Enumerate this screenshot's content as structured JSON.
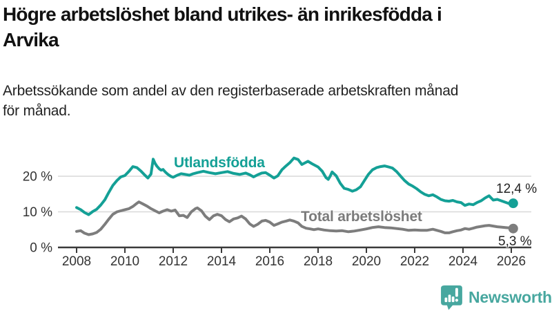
{
  "page": {
    "background": "#ffffff"
  },
  "header": {
    "title_line1": "Högre arbetslöshet bland utrikes- än inrikesfödda i",
    "title_line2": "Arvika",
    "subtitle_line1": "Arbetssökande som andel av den registerbaserade arbetskraften månad",
    "subtitle_line2": "för månad."
  },
  "chart_data": {
    "type": "line",
    "title": "Högre arbetslöshet bland utrikes- än inrikesfödda i Arvika",
    "subtitle": "Arbetssökande som andel av den registerbaserade arbetskraften månad för månad.",
    "xlabel": "",
    "ylabel": "",
    "unit": "%",
    "xlim": [
      2007.85,
      2026.35
    ],
    "ylim": [
      0,
      26
    ],
    "grid": "horizontal-light",
    "legend_position": "inline-labels",
    "x_ticks": [
      {
        "value": 2008,
        "label": "2008"
      },
      {
        "value": 2010,
        "label": "2010"
      },
      {
        "value": 2012,
        "label": "2012"
      },
      {
        "value": 2014,
        "label": "2014"
      },
      {
        "value": 2016,
        "label": "2016"
      },
      {
        "value": 2018,
        "label": "2018"
      },
      {
        "value": 2020,
        "label": "2020"
      },
      {
        "value": 2022,
        "label": "2022"
      },
      {
        "value": 2024,
        "label": "2024"
      },
      {
        "value": 2026,
        "label": "2026"
      }
    ],
    "y_ticks": [
      {
        "value": 0,
        "label": "0 %"
      },
      {
        "value": 10,
        "label": "10 %"
      },
      {
        "value": 20,
        "label": "20 %"
      }
    ],
    "colors": {
      "grid": "#d8d8d8",
      "axis": "#3a3a3a",
      "tick_label": "#333333"
    },
    "series": [
      {
        "name": "Utlandsfödda",
        "color": "#14a096",
        "line_width": 4,
        "end_value": 12.4,
        "end_value_label": "12,4 %",
        "points": [
          [
            2008.0,
            11.2
          ],
          [
            2008.17,
            10.6
          ],
          [
            2008.33,
            9.8
          ],
          [
            2008.5,
            9.2
          ],
          [
            2008.67,
            10.1
          ],
          [
            2008.83,
            10.7
          ],
          [
            2009.0,
            11.9
          ],
          [
            2009.17,
            13.4
          ],
          [
            2009.33,
            15.4
          ],
          [
            2009.5,
            17.4
          ],
          [
            2009.67,
            18.8
          ],
          [
            2009.83,
            19.8
          ],
          [
            2010.0,
            20.2
          ],
          [
            2010.17,
            21.4
          ],
          [
            2010.33,
            22.7
          ],
          [
            2010.5,
            22.4
          ],
          [
            2010.67,
            21.4
          ],
          [
            2010.83,
            20.3
          ],
          [
            2010.95,
            19.5
          ],
          [
            2011.08,
            20.6
          ],
          [
            2011.17,
            24.8
          ],
          [
            2011.25,
            23.6
          ],
          [
            2011.33,
            22.8
          ],
          [
            2011.42,
            22.1
          ],
          [
            2011.5,
            21.7
          ],
          [
            2011.58,
            21.9
          ],
          [
            2011.67,
            21.2
          ],
          [
            2011.75,
            20.7
          ],
          [
            2011.83,
            20.3
          ],
          [
            2011.92,
            19.9
          ],
          [
            2012.0,
            19.7
          ],
          [
            2012.17,
            20.3
          ],
          [
            2012.33,
            20.7
          ],
          [
            2012.5,
            20.5
          ],
          [
            2012.67,
            20.3
          ],
          [
            2012.83,
            20.7
          ],
          [
            2013.0,
            21.0
          ],
          [
            2013.25,
            21.4
          ],
          [
            2013.5,
            21.0
          ],
          [
            2013.75,
            20.7
          ],
          [
            2014.0,
            21.0
          ],
          [
            2014.25,
            21.3
          ],
          [
            2014.5,
            20.8
          ],
          [
            2014.75,
            20.5
          ],
          [
            2015.0,
            20.9
          ],
          [
            2015.17,
            20.4
          ],
          [
            2015.33,
            19.8
          ],
          [
            2015.5,
            20.4
          ],
          [
            2015.67,
            20.9
          ],
          [
            2015.83,
            21.0
          ],
          [
            2016.0,
            20.3
          ],
          [
            2016.17,
            19.5
          ],
          [
            2016.33,
            20.1
          ],
          [
            2016.5,
            21.8
          ],
          [
            2016.67,
            22.9
          ],
          [
            2016.83,
            23.8
          ],
          [
            2017.0,
            25.1
          ],
          [
            2017.17,
            24.7
          ],
          [
            2017.33,
            23.3
          ],
          [
            2017.5,
            23.9
          ],
          [
            2017.58,
            24.2
          ],
          [
            2017.75,
            23.5
          ],
          [
            2017.92,
            22.9
          ],
          [
            2018.0,
            22.6
          ],
          [
            2018.17,
            21.4
          ],
          [
            2018.33,
            19.6
          ],
          [
            2018.42,
            19.1
          ],
          [
            2018.5,
            20.0
          ],
          [
            2018.58,
            21.2
          ],
          [
            2018.75,
            20.1
          ],
          [
            2018.92,
            18.0
          ],
          [
            2019.08,
            16.6
          ],
          [
            2019.25,
            16.3
          ],
          [
            2019.42,
            15.8
          ],
          [
            2019.58,
            16.2
          ],
          [
            2019.75,
            17.0
          ],
          [
            2019.92,
            18.8
          ],
          [
            2020.08,
            20.5
          ],
          [
            2020.25,
            21.8
          ],
          [
            2020.42,
            22.4
          ],
          [
            2020.58,
            22.7
          ],
          [
            2020.75,
            22.9
          ],
          [
            2020.92,
            22.6
          ],
          [
            2021.08,
            22.3
          ],
          [
            2021.25,
            21.3
          ],
          [
            2021.42,
            20.0
          ],
          [
            2021.58,
            18.8
          ],
          [
            2021.75,
            17.8
          ],
          [
            2021.92,
            17.2
          ],
          [
            2022.08,
            16.5
          ],
          [
            2022.25,
            15.6
          ],
          [
            2022.42,
            14.9
          ],
          [
            2022.58,
            14.5
          ],
          [
            2022.75,
            14.8
          ],
          [
            2022.92,
            14.2
          ],
          [
            2023.08,
            13.5
          ],
          [
            2023.25,
            13.1
          ],
          [
            2023.42,
            13.0
          ],
          [
            2023.58,
            13.2
          ],
          [
            2023.75,
            12.8
          ],
          [
            2023.92,
            12.6
          ],
          [
            2024.08,
            11.8
          ],
          [
            2024.25,
            12.2
          ],
          [
            2024.42,
            12.0
          ],
          [
            2024.58,
            12.6
          ],
          [
            2024.75,
            13.1
          ],
          [
            2024.92,
            13.9
          ],
          [
            2025.08,
            14.5
          ],
          [
            2025.25,
            13.3
          ],
          [
            2025.42,
            13.5
          ],
          [
            2025.58,
            13.1
          ],
          [
            2025.75,
            12.7
          ],
          [
            2025.92,
            12.3
          ],
          [
            2026.08,
            12.4
          ]
        ]
      },
      {
        "name": "Total arbetslöshet",
        "color": "#7d7d7d",
        "line_width": 4,
        "end_value": 5.3,
        "end_value_label": "5,3 %",
        "points": [
          [
            2008.0,
            4.5
          ],
          [
            2008.17,
            4.7
          ],
          [
            2008.33,
            4.0
          ],
          [
            2008.5,
            3.6
          ],
          [
            2008.67,
            3.8
          ],
          [
            2008.83,
            4.2
          ],
          [
            2009.0,
            5.1
          ],
          [
            2009.17,
            6.5
          ],
          [
            2009.33,
            7.9
          ],
          [
            2009.5,
            9.3
          ],
          [
            2009.67,
            10.0
          ],
          [
            2009.83,
            10.3
          ],
          [
            2010.0,
            10.6
          ],
          [
            2010.17,
            10.9
          ],
          [
            2010.33,
            11.5
          ],
          [
            2010.5,
            12.4
          ],
          [
            2010.58,
            12.8
          ],
          [
            2010.75,
            12.2
          ],
          [
            2010.92,
            11.6
          ],
          [
            2011.08,
            10.9
          ],
          [
            2011.25,
            10.3
          ],
          [
            2011.42,
            9.7
          ],
          [
            2011.58,
            10.2
          ],
          [
            2011.75,
            10.6
          ],
          [
            2011.92,
            10.2
          ],
          [
            2012.08,
            10.5
          ],
          [
            2012.25,
            8.9
          ],
          [
            2012.42,
            9.0
          ],
          [
            2012.58,
            8.4
          ],
          [
            2012.75,
            10.0
          ],
          [
            2012.92,
            10.9
          ],
          [
            2013.0,
            11.1
          ],
          [
            2013.17,
            10.3
          ],
          [
            2013.33,
            8.8
          ],
          [
            2013.5,
            7.8
          ],
          [
            2013.67,
            8.9
          ],
          [
            2013.83,
            9.3
          ],
          [
            2014.0,
            8.9
          ],
          [
            2014.17,
            7.8
          ],
          [
            2014.33,
            7.2
          ],
          [
            2014.5,
            8.0
          ],
          [
            2014.67,
            8.3
          ],
          [
            2014.83,
            8.8
          ],
          [
            2015.0,
            8.0
          ],
          [
            2015.17,
            6.6
          ],
          [
            2015.33,
            5.9
          ],
          [
            2015.5,
            6.5
          ],
          [
            2015.67,
            7.4
          ],
          [
            2015.83,
            7.6
          ],
          [
            2016.0,
            7.1
          ],
          [
            2016.17,
            6.2
          ],
          [
            2016.33,
            6.6
          ],
          [
            2016.5,
            7.1
          ],
          [
            2016.67,
            7.4
          ],
          [
            2016.83,
            7.7
          ],
          [
            2017.0,
            7.4
          ],
          [
            2017.17,
            6.9
          ],
          [
            2017.33,
            5.9
          ],
          [
            2017.5,
            5.4
          ],
          [
            2017.67,
            5.2
          ],
          [
            2017.83,
            5.0
          ],
          [
            2018.0,
            5.2
          ],
          [
            2018.25,
            4.9
          ],
          [
            2018.5,
            4.7
          ],
          [
            2018.75,
            4.6
          ],
          [
            2019.0,
            4.7
          ],
          [
            2019.25,
            4.4
          ],
          [
            2019.5,
            4.6
          ],
          [
            2019.75,
            4.9
          ],
          [
            2020.0,
            5.2
          ],
          [
            2020.25,
            5.6
          ],
          [
            2020.5,
            5.8
          ],
          [
            2020.75,
            5.6
          ],
          [
            2021.0,
            5.5
          ],
          [
            2021.25,
            5.3
          ],
          [
            2021.5,
            5.1
          ],
          [
            2021.75,
            4.8
          ],
          [
            2022.0,
            4.9
          ],
          [
            2022.25,
            4.8
          ],
          [
            2022.5,
            4.8
          ],
          [
            2022.75,
            5.1
          ],
          [
            2022.92,
            4.8
          ],
          [
            2023.08,
            4.5
          ],
          [
            2023.25,
            4.1
          ],
          [
            2023.42,
            4.1
          ],
          [
            2023.58,
            4.4
          ],
          [
            2023.75,
            4.7
          ],
          [
            2023.92,
            4.9
          ],
          [
            2024.08,
            5.3
          ],
          [
            2024.25,
            5.1
          ],
          [
            2024.42,
            5.4
          ],
          [
            2024.58,
            5.7
          ],
          [
            2024.75,
            5.9
          ],
          [
            2024.92,
            6.1
          ],
          [
            2025.08,
            6.2
          ],
          [
            2025.25,
            6.0
          ],
          [
            2025.42,
            5.8
          ],
          [
            2025.58,
            5.7
          ],
          [
            2025.75,
            5.6
          ],
          [
            2025.92,
            5.5
          ],
          [
            2026.08,
            5.3
          ]
        ]
      }
    ]
  },
  "branding": {
    "name": "Newsworthy",
    "color": "#47a79f",
    "icon": "newsworthy-chart-bubble-icon"
  }
}
